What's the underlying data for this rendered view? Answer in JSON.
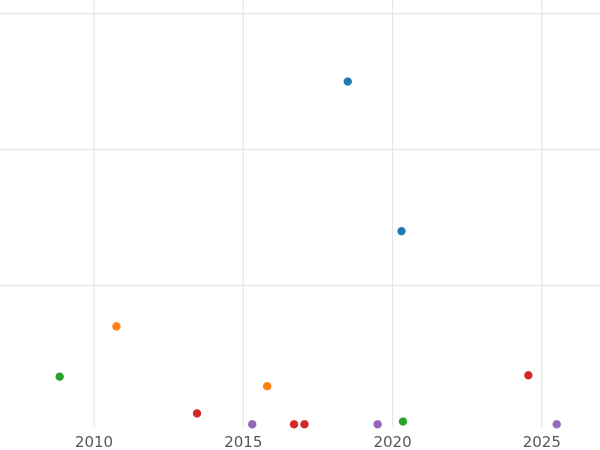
{
  "chart_data": {
    "type": "scatter",
    "title": "",
    "xlabel": "",
    "ylabel": "",
    "xlim": [
      2006.85,
      2026.95
    ],
    "ylim": [
      -0.4,
      31
    ],
    "x_ticks": [
      2010,
      2015,
      2020,
      2025
    ],
    "x_tick_labels": [
      "2010",
      "2015",
      "2020",
      "2025"
    ],
    "y_gridlines": [
      10,
      20,
      30
    ],
    "grid": true,
    "legend": "none",
    "series": [
      {
        "color": "#1f77b4",
        "points": [
          {
            "x": 2018.5,
            "y": 25.0
          },
          {
            "x": 2020.3,
            "y": 14.0
          }
        ]
      },
      {
        "color": "#ff7f0e",
        "points": [
          {
            "x": 2010.75,
            "y": 7.0
          },
          {
            "x": 2015.8,
            "y": 2.6
          }
        ]
      },
      {
        "color": "#2ca02c",
        "points": [
          {
            "x": 2008.85,
            "y": 3.3
          },
          {
            "x": 2020.35,
            "y": 0.0
          }
        ]
      },
      {
        "color": "#d62728",
        "points": [
          {
            "x": 2013.45,
            "y": 0.6
          },
          {
            "x": 2016.7,
            "y": -0.2
          },
          {
            "x": 2017.05,
            "y": -0.2
          },
          {
            "x": 2024.55,
            "y": 3.4
          }
        ]
      },
      {
        "color": "#9467bd",
        "points": [
          {
            "x": 2015.3,
            "y": -0.2
          },
          {
            "x": 2019.5,
            "y": -0.2
          },
          {
            "x": 2025.5,
            "y": -0.2
          }
        ]
      }
    ]
  }
}
